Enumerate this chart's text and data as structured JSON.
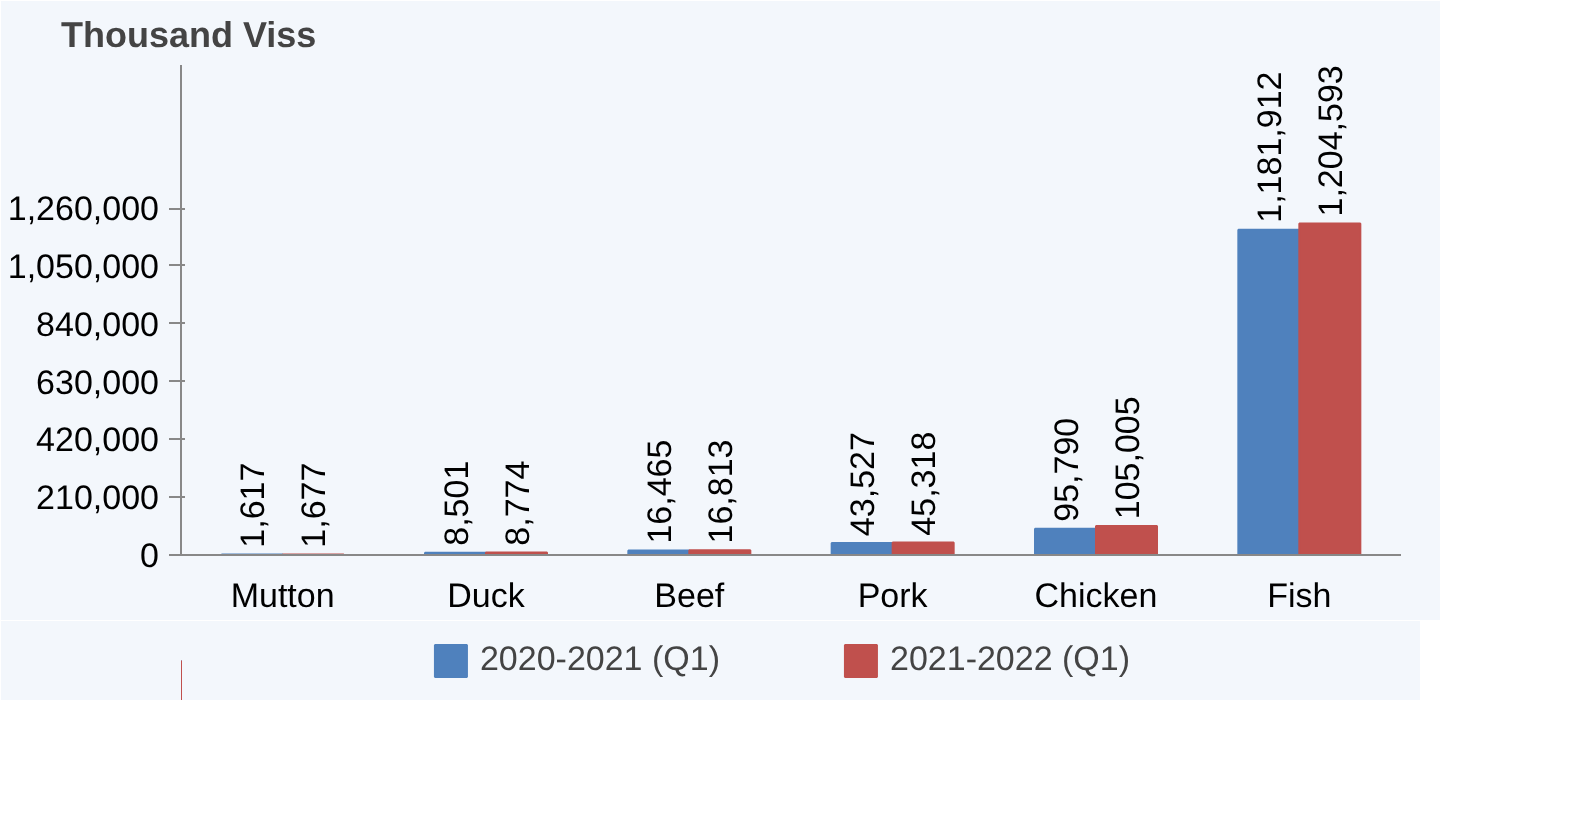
{
  "chart_data": {
    "type": "bar",
    "ylabel": "Thousand Viss",
    "categories": [
      "Mutton",
      "Duck",
      "Beef",
      "Pork",
      "Chicken",
      "Fish"
    ],
    "series": [
      {
        "name": "2020-2021 (Q1)",
        "color": "#4f81bd",
        "values": [
          1617,
          8501,
          16465,
          43527,
          95790,
          1181912
        ],
        "value_labels": [
          "1,617",
          "8,501",
          "16,465",
          "43,527",
          "95,790",
          "1,181,912"
        ]
      },
      {
        "name": "2021-2022 (Q1)",
        "color": "#c0504d",
        "values": [
          1677,
          8774,
          16813,
          45318,
          105005,
          1204593
        ],
        "value_labels": [
          "1,677",
          "8,774",
          "16,813",
          "45,318",
          "105,005",
          "1,204,593"
        ]
      }
    ],
    "ylim": [
      0,
      1780000
    ],
    "yticks": [
      {
        "value": 0,
        "label": "0"
      },
      {
        "value": 210000,
        "label": "210,000"
      },
      {
        "value": 420000,
        "label": "420,000"
      },
      {
        "value": 630000,
        "label": "630,000"
      },
      {
        "value": 840000,
        "label": "840,000"
      },
      {
        "value": 1050000,
        "label": "1,050,000"
      },
      {
        "value": 1260000,
        "label": "1,260,000"
      }
    ],
    "grid": false,
    "legend": "bottom"
  }
}
